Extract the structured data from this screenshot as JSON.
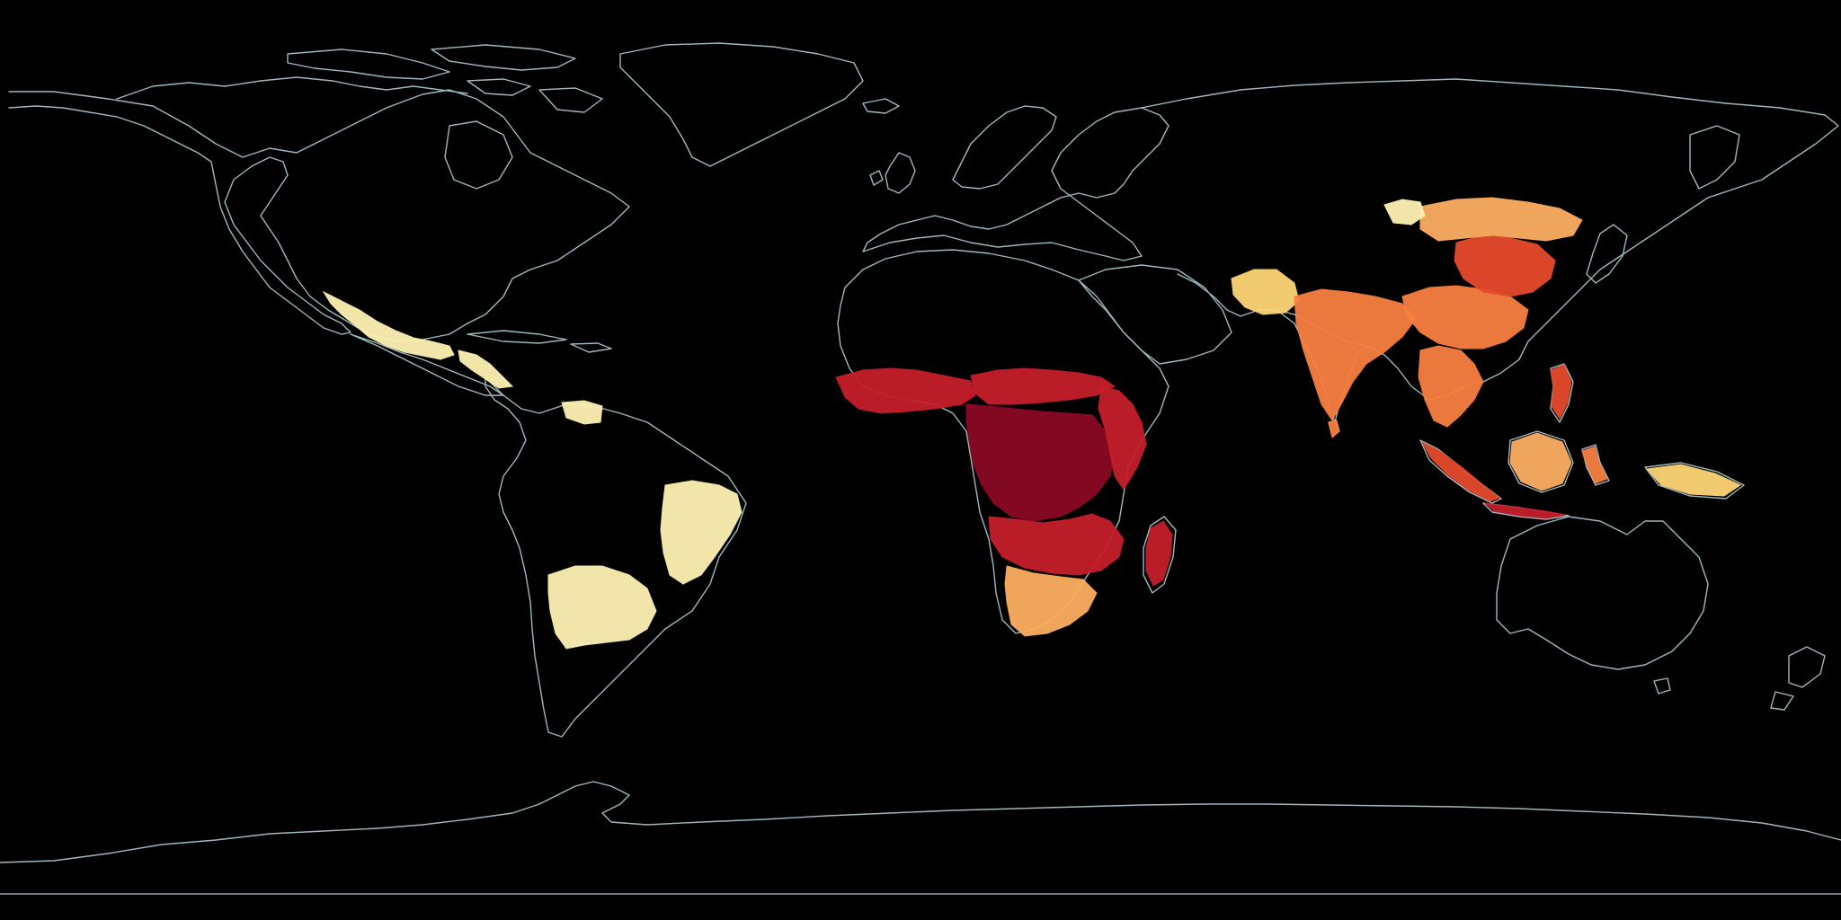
{
  "map": {
    "projection": "equirectangular",
    "background": "#000000",
    "coastline_color": "#9fb8c0",
    "legend": null,
    "colorscale": {
      "name": "YlOrRd",
      "stops": [
        "#fff2b3",
        "#fed577",
        "#fdae61",
        "#f87f41",
        "#e64a2c",
        "#c41f2b",
        "#8b0a24"
      ]
    },
    "regions": [
      {
        "name": "mexico",
        "level": 0
      },
      {
        "name": "central-america",
        "level": 0
      },
      {
        "name": "northern-south-america",
        "level": 0
      },
      {
        "name": "eastern-brazil",
        "level": 0
      },
      {
        "name": "southern-brazil-paraguay",
        "level": 0
      },
      {
        "name": "west-africa",
        "level": 5
      },
      {
        "name": "sahel",
        "level": 5
      },
      {
        "name": "central-africa",
        "level": 6
      },
      {
        "name": "east-africa",
        "level": 5
      },
      {
        "name": "southern-africa-north",
        "level": 5
      },
      {
        "name": "southern-africa-south",
        "level": 2
      },
      {
        "name": "madagascar",
        "level": 5
      },
      {
        "name": "pakistan",
        "level": 1
      },
      {
        "name": "india",
        "level": 3
      },
      {
        "name": "sri-lanka",
        "level": 3
      },
      {
        "name": "southeast-asia",
        "level": 3
      },
      {
        "name": "southern-china",
        "level": 3
      },
      {
        "name": "eastern-china",
        "level": 4
      },
      {
        "name": "northern-china",
        "level": 2
      },
      {
        "name": "mongolia-border",
        "level": 0
      },
      {
        "name": "philippines",
        "level": 4
      },
      {
        "name": "sumatra",
        "level": 4
      },
      {
        "name": "java",
        "level": 5
      },
      {
        "name": "borneo",
        "level": 2
      },
      {
        "name": "sulawesi",
        "level": 3
      },
      {
        "name": "new-guinea",
        "level": 1
      }
    ]
  }
}
